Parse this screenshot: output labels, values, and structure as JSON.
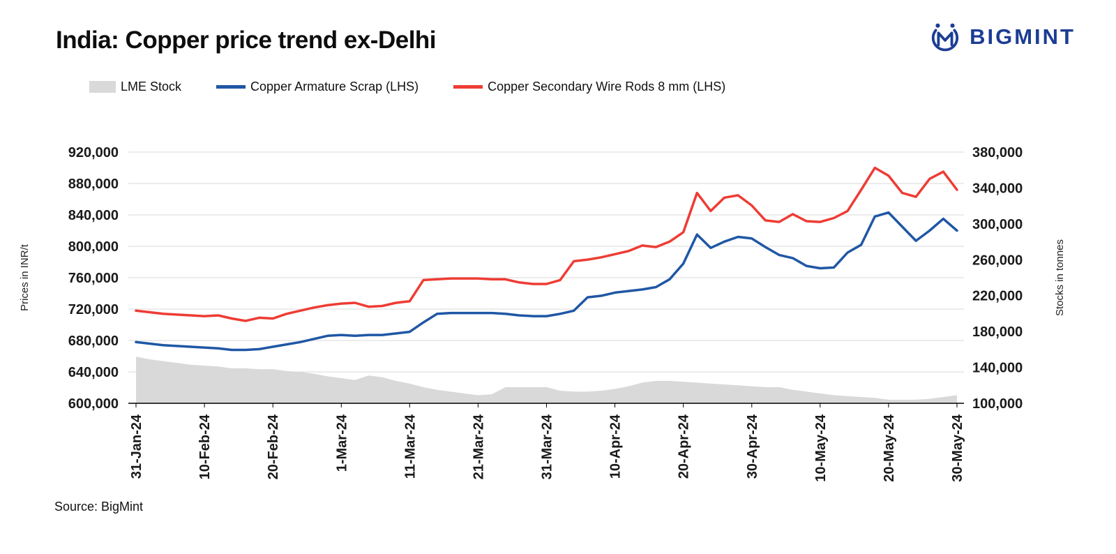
{
  "title": "India: Copper price trend ex-Delhi",
  "logo_text": "BIGMINT",
  "source_text": "Source: BigMint",
  "legend": [
    {
      "label": "LME Stock",
      "type": "area",
      "color": "#d9d9d9"
    },
    {
      "label": "Copper Armature Scrap (LHS)",
      "type": "line",
      "color": "#1f57a5"
    },
    {
      "label": "Copper Secondary Wire Rods 8 mm (LHS)",
      "type": "line",
      "color": "#ee3c34"
    }
  ],
  "axes": {
    "left": {
      "title": "Prices in INR/t",
      "ticks": [
        "920,000",
        "880,000",
        "840,000",
        "800,000",
        "760,000",
        "720,000",
        "680,000",
        "640,000",
        "600,000"
      ]
    },
    "right": {
      "title": "Stocks in tonnes",
      "ticks": [
        "380,000",
        "340,000",
        "300,000",
        "260,000",
        "220,000",
        "180,000",
        "140,000",
        "100,000"
      ]
    },
    "x": {
      "tick_labels": [
        "31-Jan-24",
        "10-Feb-24",
        "20-Feb-24",
        "1-Mar-24",
        "11-Mar-24",
        "21-Mar-24",
        "31-Mar-24",
        "10-Apr-24",
        "20-Apr-24",
        "30-Apr-24",
        "10-May-24",
        "20-May-24",
        "30-May-24"
      ],
      "tick_indices": [
        0,
        5,
        10,
        15,
        20,
        25,
        30,
        35,
        40,
        45,
        50,
        55,
        60
      ]
    }
  },
  "chart_data": {
    "type": "line",
    "title": "India: Copper price trend ex-Delhi",
    "x_note": "dates sampled every 2 days from 31-Jan-24 to 30-May-24",
    "x_tick_labels": [
      "31-Jan-24",
      "10-Feb-24",
      "20-Feb-24",
      "1-Mar-24",
      "11-Mar-24",
      "21-Mar-24",
      "31-Mar-24",
      "10-Apr-24",
      "20-Apr-24",
      "30-Apr-24",
      "10-May-24",
      "20-May-24",
      "30-May-24"
    ],
    "left_axis": {
      "label": "Prices in INR/t",
      "min": 600000,
      "max": 920000,
      "step": 40000
    },
    "right_axis": {
      "label": "Stocks in tonnes",
      "min": 100000,
      "max": 380000,
      "step": 40000
    },
    "grid": "horizontal",
    "legend_position": "top",
    "series": [
      {
        "name": "LME Stock",
        "type": "area",
        "axis": "right",
        "color": "#d9d9d9",
        "values": [
          152000,
          149000,
          147000,
          145000,
          143000,
          142000,
          141000,
          139000,
          139000,
          138000,
          138000,
          136000,
          135000,
          133000,
          130000,
          128000,
          126000,
          131000,
          129000,
          125000,
          122000,
          118000,
          115000,
          113000,
          111000,
          109000,
          110000,
          118000,
          118000,
          118000,
          118000,
          114000,
          113000,
          113000,
          114000,
          116000,
          119000,
          123000,
          125000,
          125000,
          124000,
          123000,
          122000,
          121000,
          120000,
          119000,
          118000,
          118000,
          115000,
          113000,
          111000,
          109000,
          108000,
          107000,
          106000,
          104000,
          104000,
          104000,
          105000,
          107000,
          109000
        ]
      },
      {
        "name": "Copper Armature Scrap (LHS)",
        "type": "line",
        "axis": "left",
        "color": "#1f57a5",
        "values": [
          678000,
          676000,
          674000,
          673000,
          672000,
          671000,
          670000,
          668000,
          668000,
          669000,
          672000,
          675000,
          678000,
          682000,
          686000,
          687000,
          686000,
          687000,
          687000,
          689000,
          691000,
          703000,
          714000,
          715000,
          715000,
          715000,
          715000,
          714000,
          712000,
          711000,
          711000,
          714000,
          718000,
          735000,
          737000,
          741000,
          743000,
          745000,
          748000,
          758000,
          778000,
          815000,
          798000,
          806000,
          812000,
          810000,
          799000,
          789000,
          785000,
          775000,
          772000,
          773000,
          792000,
          802000,
          838000,
          843000,
          825000,
          807000,
          820000,
          835000,
          820000
        ]
      },
      {
        "name": "Copper Secondary Wire Rods 8 mm (LHS)",
        "type": "line",
        "axis": "left",
        "color": "#ee3c34",
        "values": [
          718000,
          716000,
          714000,
          713000,
          712000,
          711000,
          712000,
          708000,
          705000,
          709000,
          708000,
          714000,
          718000,
          722000,
          725000,
          727000,
          728000,
          723000,
          724000,
          728000,
          730000,
          757000,
          758000,
          759000,
          759000,
          759000,
          758000,
          758000,
          754000,
          752000,
          752000,
          757000,
          781000,
          783000,
          786000,
          790000,
          794000,
          801000,
          799000,
          806000,
          818000,
          868000,
          845000,
          862000,
          865000,
          852000,
          833000,
          831000,
          841000,
          832000,
          831000,
          836000,
          845000,
          872000,
          900000,
          890000,
          868000,
          863000,
          886000,
          895000,
          872000
        ]
      }
    ]
  }
}
